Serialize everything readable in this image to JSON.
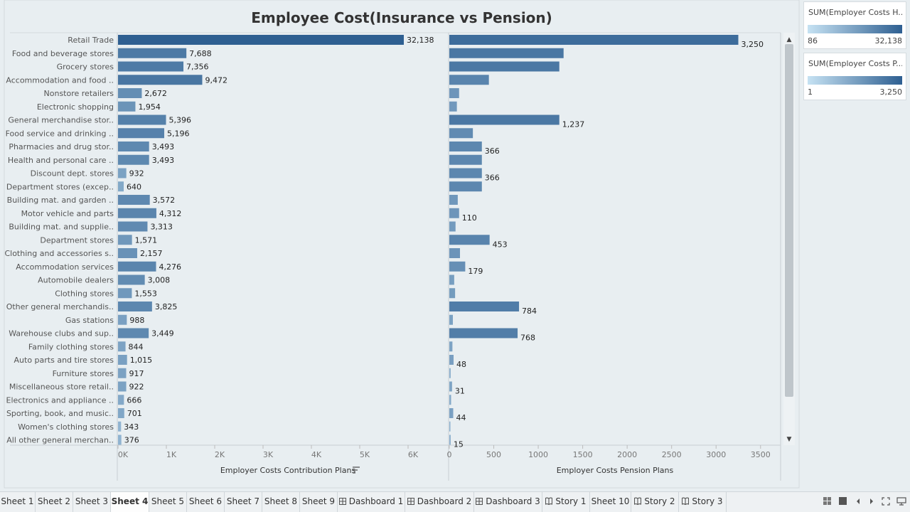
{
  "chart_data": {
    "type": "bar",
    "title": "Employee Cost(Insurance vs Pension)",
    "categories": [
      "Retail Trade",
      "Food and beverage stores",
      "Grocery stores",
      "Accommodation and food ..",
      "Nonstore retailers",
      "Electronic shopping",
      "General merchandise stor..",
      "Food service and drinking ..",
      "Pharmacies and drug stor..",
      "Health and personal care ..",
      "Discount dept. stores",
      "Department stores (excep..",
      "Building mat. and garden ..",
      "Motor vehicle and parts",
      "Building mat. and supplie..",
      "Department stores",
      "Clothing and accessories s..",
      "Accommodation services",
      "Automobile dealers",
      "Clothing stores",
      "Other general merchandis..",
      "Gas stations",
      "Warehouse clubs and sup..",
      "Family clothing stores",
      "Auto parts and tire stores",
      "Furniture stores",
      "Miscellaneous store retail..",
      "Electronics and appliance ..",
      "Sporting, book, and music..",
      "Women's clothing stores",
      "All other general merchan.."
    ],
    "series": [
      {
        "xlabel": "Employer Costs Contribution Plans",
        "values": [
          32138,
          7688,
          7356,
          9472,
          2672,
          1954,
          5396,
          5196,
          3493,
          3493,
          932,
          640,
          3572,
          4312,
          3313,
          1571,
          2157,
          4276,
          3008,
          1553,
          3825,
          988,
          3449,
          844,
          1015,
          917,
          922,
          666,
          701,
          343,
          376
        ],
        "labels": [
          "32,138",
          "7,688",
          "7,356",
          "9,472",
          "2,672",
          "1,954",
          "5,396",
          "5,196",
          "3,493",
          "3,493",
          "932",
          "640",
          "3,572",
          "4,312",
          "3,313",
          "1,571",
          "2,157",
          "4,276",
          "3,008",
          "1,553",
          "3,825",
          "988",
          "3,449",
          "844",
          "1,015",
          "917",
          "922",
          "666",
          "701",
          "343",
          "376"
        ],
        "ticks": [
          0,
          1000,
          2000,
          3000,
          4000,
          5000,
          6000
        ],
        "tick_labels": [
          "0K",
          "1K",
          "2K",
          "3K",
          "4K",
          "5K",
          "6K"
        ],
        "sorted_desc": true
      },
      {
        "xlabel": "Employer Costs Pension Plans",
        "values": [
          3250,
          1285,
          1237,
          445,
          110,
          85,
          1237,
          265,
          366,
          366,
          366,
          366,
          95,
          110,
          70,
          453,
          120,
          179,
          55,
          65,
          784,
          40,
          768,
          35,
          48,
          15,
          31,
          20,
          44,
          12,
          15
        ],
        "labels": [
          "3,250",
          "",
          "",
          "",
          "",
          "",
          "1,237",
          "",
          "366",
          "",
          "366",
          "",
          "",
          "110",
          "",
          "453",
          "",
          "179",
          "",
          "",
          "784",
          "",
          "768",
          "",
          "48",
          "",
          "31",
          "",
          "44",
          "",
          "15"
        ],
        "ticks": [
          0,
          500,
          1000,
          1500,
          2000,
          2500,
          3000,
          3500
        ],
        "tick_labels": [
          "0",
          "500",
          "1000",
          "1500",
          "2000",
          "2500",
          "3000",
          "3500"
        ]
      }
    ],
    "color_scale": {
      "low": "#c6e2f3",
      "high": "#2e5f91"
    },
    "legend_placement": "right",
    "grid": false
  },
  "legends": [
    {
      "title": "SUM(Employer Costs H...",
      "min": "86",
      "max": "32,138"
    },
    {
      "title": "SUM(Employer Costs P...",
      "min": "1",
      "max": "3,250"
    }
  ],
  "tabs": [
    "Sheet 1",
    "Sheet 2",
    "Sheet 3",
    "Sheet 4",
    "Sheet 5",
    "Sheet 6",
    "Sheet 7",
    "Sheet 8",
    "Sheet 9",
    "Dashboard 1",
    "Dashboard 2",
    "Dashboard 3",
    "Story 1",
    "Sheet 10",
    "Story 2",
    "Story 3"
  ],
  "active_tab": "Sheet 4",
  "tab_icons": [
    "",
    "",
    "",
    "",
    "",
    "",
    "",
    "",
    "",
    "dashboard-icon",
    "dashboard-icon",
    "dashboard-icon",
    "story-icon",
    "",
    "story-icon",
    "story-icon"
  ],
  "scroll": {
    "up": "▲",
    "down": "▼"
  },
  "controls": [
    "grid-view-icon",
    "single-view-icon",
    "prev-icon",
    "next-icon",
    "fullscreen-icon",
    "presentation-icon"
  ]
}
